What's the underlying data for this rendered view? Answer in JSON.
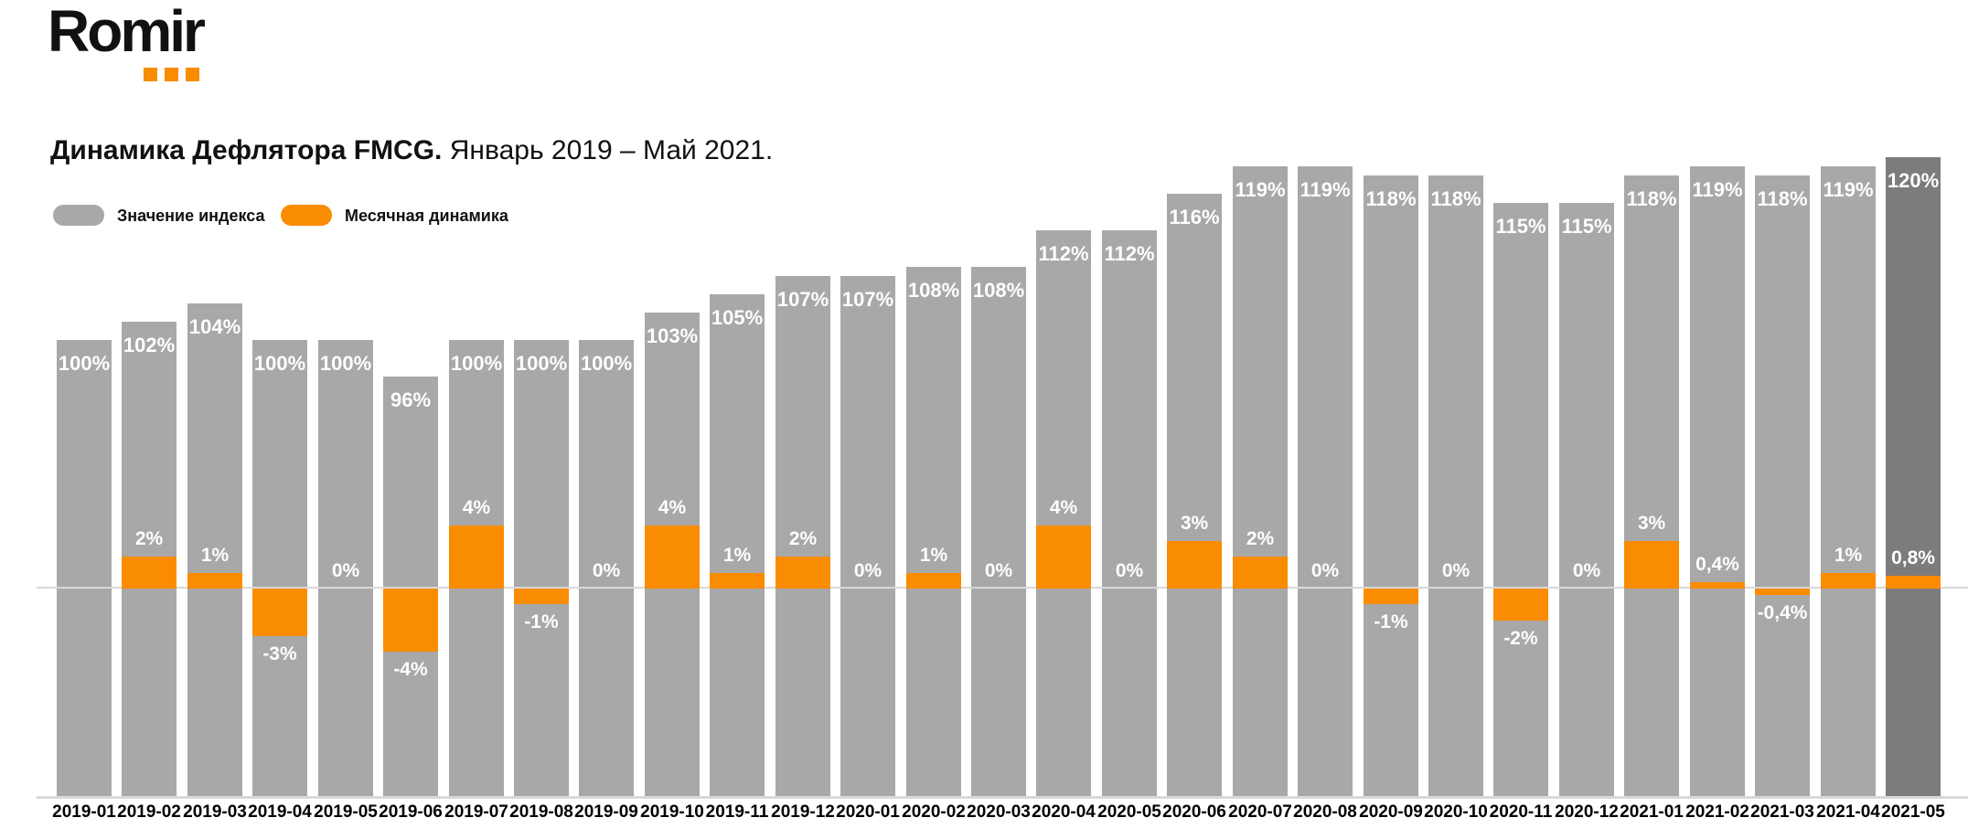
{
  "logo": {
    "text": "Romir"
  },
  "header": {
    "title_bold": "Динамика Дефлятора FMCG.",
    "title_period": "Январь 2019 – Май 2021."
  },
  "legend": {
    "index_label": "Значение индекса",
    "dynamics_label": "Месячная динамика"
  },
  "colors": {
    "index_bar": "#A8A8A8",
    "index_bar_highlight": "#7C7C7C",
    "dynamics_bar": "#F98C00",
    "axis_line": "#D9D9D9",
    "value_label": "#FFFFFF",
    "tick_label": "#000000",
    "logo_square": "#F98C00"
  },
  "chart_data": {
    "type": "bar",
    "title": "Динамика Дефлятора FMCG. Январь 2019 – Май 2021.",
    "categories": [
      "2019-01",
      "2019-02",
      "2019-03",
      "2019-04",
      "2019-05",
      "2019-06",
      "2019-07",
      "2019-08",
      "2019-09",
      "2019-10",
      "2019-11",
      "2019-12",
      "2020-01",
      "2020-02",
      "2020-03",
      "2020-04",
      "2020-05",
      "2020-06",
      "2020-07",
      "2020-08",
      "2020-09",
      "2020-10",
      "2020-11",
      "2020-12",
      "2021-01",
      "2021-02",
      "2021-03",
      "2021-04",
      "2021-05"
    ],
    "series": [
      {
        "name": "Значение индекса",
        "unit": "%",
        "values": [
          100,
          102,
          104,
          100,
          100,
          96,
          100,
          100,
          100,
          103,
          105,
          107,
          107,
          108,
          108,
          112,
          112,
          116,
          119,
          119,
          118,
          118,
          115,
          115,
          118,
          119,
          118,
          119,
          120
        ],
        "labels": [
          "100%",
          "102%",
          "104%",
          "100%",
          "100%",
          "96%",
          "100%",
          "100%",
          "100%",
          "103%",
          "105%",
          "107%",
          "107%",
          "108%",
          "108%",
          "112%",
          "112%",
          "116%",
          "119%",
          "119%",
          "118%",
          "118%",
          "115%",
          "115%",
          "118%",
          "119%",
          "118%",
          "119%",
          "120%"
        ]
      },
      {
        "name": "Месячная динамика",
        "unit": "%",
        "values": [
          null,
          2,
          1,
          -3,
          0,
          -4,
          4,
          -1,
          0,
          4,
          1,
          2,
          0,
          1,
          0,
          4,
          0,
          3,
          2,
          0,
          -1,
          0,
          -2,
          0,
          3,
          0.4,
          -0.4,
          1,
          0.8
        ],
        "labels": [
          null,
          "2%",
          "1%",
          "-3%",
          "0%",
          "-4%",
          "4%",
          "-1%",
          "0%",
          "4%",
          "1%",
          "2%",
          "0%",
          "1%",
          "0%",
          "4%",
          "0%",
          "3%",
          "2%",
          "0%",
          "-1%",
          "0%",
          "-2%",
          "0%",
          "3%",
          "0,4%",
          "-0,4%",
          "1%",
          "0,8%"
        ]
      }
    ],
    "highlight_last_bar": true,
    "legend_position": "top-left",
    "grid": false,
    "zero_line": true,
    "ylim_index": [
      96,
      120
    ]
  }
}
